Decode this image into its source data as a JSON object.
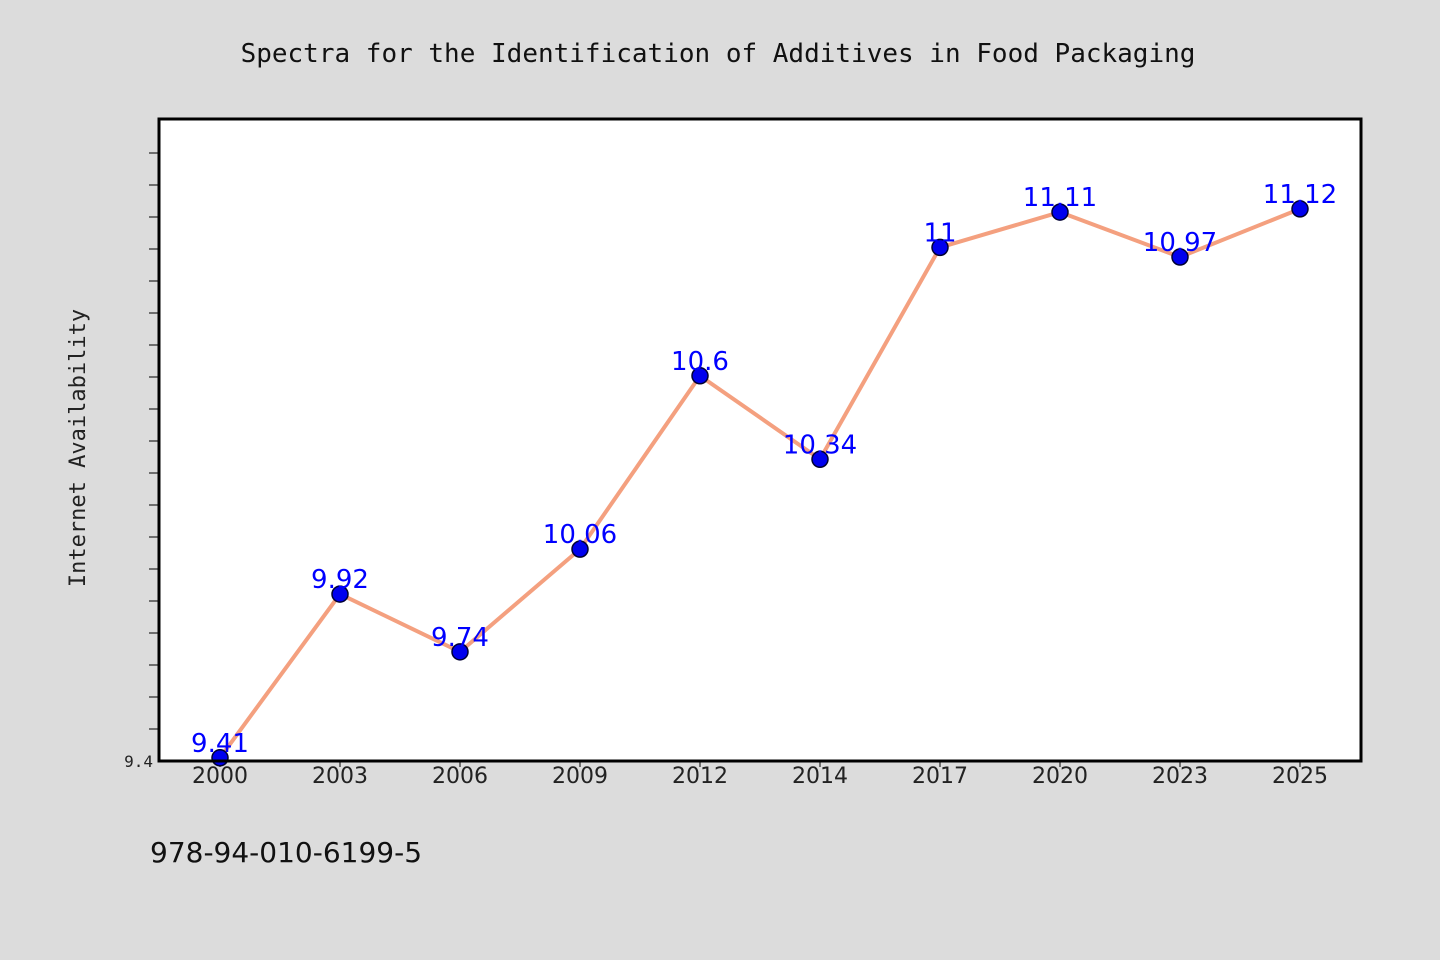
{
  "chart_data": {
    "type": "line",
    "title": "Spectra for the Identification of Additives in Food Packaging",
    "xlabel": "",
    "ylabel": "Internet Availability",
    "categories": [
      "2000",
      "2003",
      "2006",
      "2009",
      "2012",
      "2014",
      "2017",
      "2020",
      "2023",
      "2025"
    ],
    "series": [
      {
        "values": [
          9.41,
          9.92,
          9.74,
          10.06,
          10.6,
          10.34,
          11,
          11.11,
          10.97,
          11.12
        ],
        "data_labels": [
          "9.41",
          "9.92",
          "9.74",
          "10.06",
          "10.6",
          "10.34",
          "11",
          "11.11",
          "10.97",
          "11.12"
        ]
      }
    ],
    "ylim": [
      9.4,
      11.4
    ],
    "y_tick_labels": [
      "9.4"
    ],
    "grid": false,
    "legend": "none",
    "colors": {
      "line": "#f4a07f",
      "marker": "#0000ee",
      "marker_edge": "#000033",
      "data_label": "#0000ff",
      "plot_background": "#ffffff",
      "figure_background": "#dcdcdc"
    }
  },
  "footer": {
    "text": "978-94-010-6199-5"
  }
}
